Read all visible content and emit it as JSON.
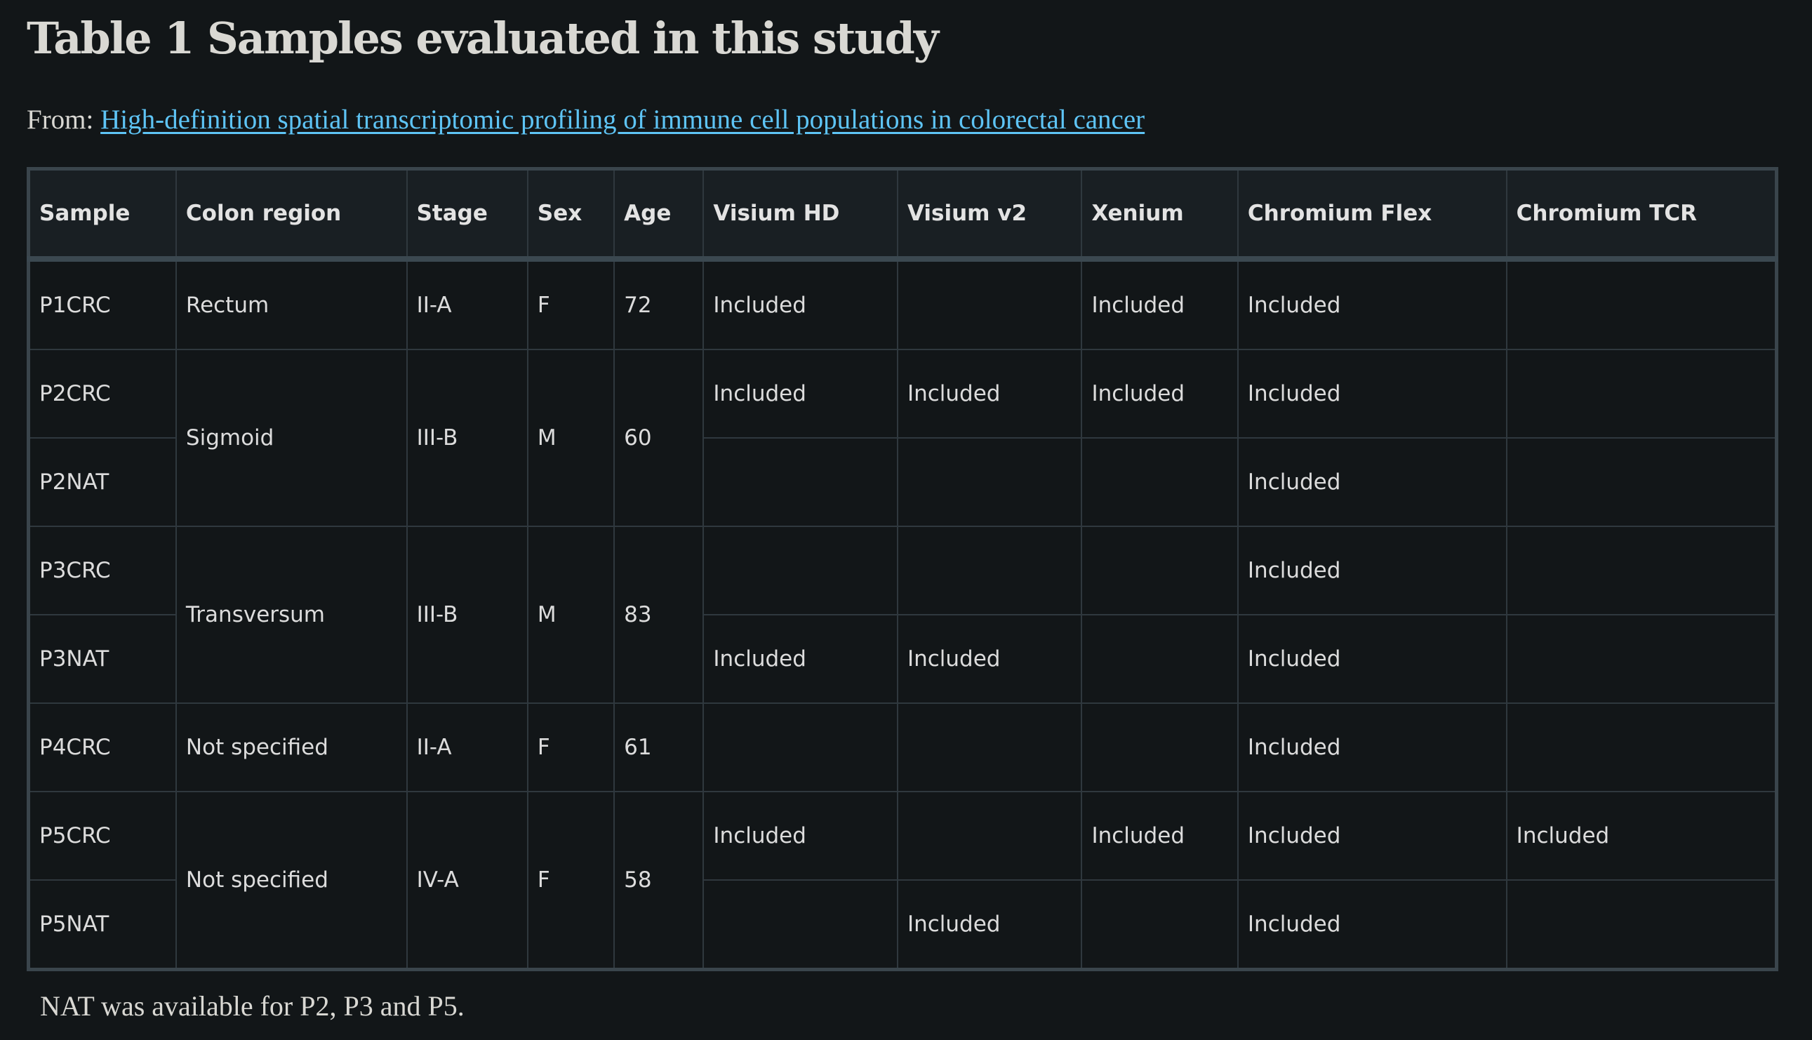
{
  "title": "Table 1 Samples evaluated in this study",
  "from_label": "From: ",
  "article_title": "High-definition spatial transcriptomic profiling of immune cell populations in colorectal cancer",
  "headers": [
    "Sample",
    "Colon region",
    "Stage",
    "Sex",
    "Age",
    "Visium HD",
    "Visium v2",
    "Xenium",
    "Chromium Flex",
    "Chromium TCR"
  ],
  "rows": [
    [
      "P1CRC",
      "Rectum",
      "II-A",
      "F",
      "72",
      "Included",
      "",
      "Included",
      "Included",
      ""
    ],
    [
      "P2CRC",
      "Sigmoid",
      "III-B",
      "M",
      "60",
      "Included",
      "Included",
      "Included",
      "Included",
      ""
    ],
    [
      "P2NAT",
      "",
      "",
      "",
      "",
      "",
      "",
      "",
      "Included",
      ""
    ],
    [
      "P3CRC",
      "Transversum",
      "III-B",
      "M",
      "83",
      "",
      "",
      "",
      "Included",
      ""
    ],
    [
      "P3NAT",
      "",
      "",
      "",
      "",
      "Included",
      "Included",
      "",
      "Included",
      ""
    ],
    [
      "P4CRC",
      "Not specified",
      "II-A",
      "F",
      "61",
      "",
      "",
      "",
      "Included",
      ""
    ],
    [
      "P5CRC",
      "Not specified",
      "IV-A",
      "F",
      "58",
      "Included",
      "",
      "Included",
      "Included",
      "Included"
    ],
    [
      "P5NAT",
      "",
      "",
      "",
      "",
      "",
      "Included",
      "",
      "Included",
      ""
    ]
  ],
  "footnote": "NAT was available for P2, P3 and P5."
}
